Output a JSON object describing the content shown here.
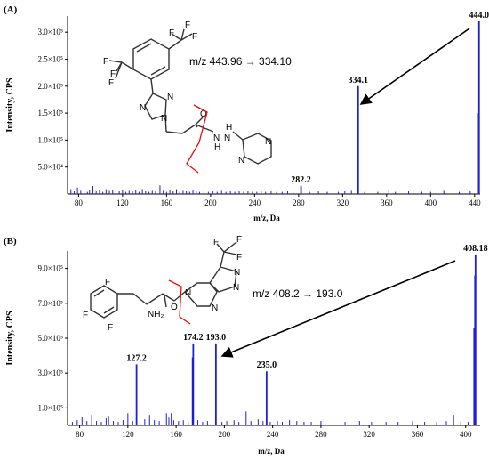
{
  "colors": {
    "spectrum": "#1f1fd6",
    "axis": "#000000",
    "cleavage": "#e01010",
    "arrow": "#000000",
    "bond": "#333333"
  },
  "chart_data": [
    {
      "type": "bar",
      "panel_label": "(A)",
      "xlabel": "m/z, Da",
      "ylabel": "Intensity, CPS",
      "xlim": [
        70,
        445
      ],
      "ylim": [
        0,
        330000
      ],
      "x_ticks": [
        80,
        120,
        160,
        200,
        240,
        280,
        320,
        360,
        400,
        440
      ],
      "y_ticks": [
        {
          "value": 50000,
          "label": "5.0×10⁴"
        },
        {
          "value": 100000,
          "label": "1.0×10⁵"
        },
        {
          "value": 150000,
          "label": "1.5×10⁵"
        },
        {
          "value": 200000,
          "label": "2.0×10⁵"
        },
        {
          "value": 250000,
          "label": "2.5×10⁵"
        },
        {
          "value": 300000,
          "label": "3.0×10⁵"
        }
      ],
      "peaks": [
        {
          "mz": 282.2,
          "intensity": 15000,
          "label": "282.2"
        },
        {
          "mz": 334.1,
          "intensity": 200000,
          "label": "334.1"
        },
        {
          "mz": 444.0,
          "intensity": 320000,
          "label": "444.0"
        }
      ],
      "extra_peaks": [
        {
          "mz": 333.5,
          "intensity": 170000
        },
        {
          "mz": 443.5,
          "intensity": 150000
        }
      ],
      "noise": [
        [
          73,
          9000
        ],
        [
          76,
          5000
        ],
        [
          79,
          12000
        ],
        [
          82,
          6000
        ],
        [
          85,
          7000
        ],
        [
          88,
          4000
        ],
        [
          90,
          8000
        ],
        [
          93,
          15000
        ],
        [
          96,
          5000
        ],
        [
          99,
          7000
        ],
        [
          102,
          4000
        ],
        [
          105,
          9000
        ],
        [
          108,
          6000
        ],
        [
          111,
          8000
        ],
        [
          114,
          13000
        ],
        [
          117,
          5000
        ],
        [
          120,
          7000
        ],
        [
          123,
          4000
        ],
        [
          126,
          6000
        ],
        [
          129,
          5000
        ],
        [
          132,
          7000
        ],
        [
          135,
          4000
        ],
        [
          138,
          9000
        ],
        [
          141,
          5000
        ],
        [
          144,
          4000
        ],
        [
          147,
          6000
        ],
        [
          150,
          5000
        ],
        [
          154,
          16000
        ],
        [
          157,
          6000
        ],
        [
          160,
          4000
        ],
        [
          163,
          7000
        ],
        [
          166,
          5000
        ],
        [
          169,
          9000
        ],
        [
          172,
          4000
        ],
        [
          175,
          6000
        ],
        [
          178,
          5000
        ],
        [
          181,
          4000
        ],
        [
          184,
          7000
        ],
        [
          187,
          5000
        ],
        [
          190,
          4000
        ],
        [
          194,
          6000
        ],
        [
          198,
          4000
        ],
        [
          202,
          5000
        ],
        [
          206,
          4000
        ],
        [
          210,
          6000
        ],
        [
          214,
          4000
        ],
        [
          218,
          5000
        ],
        [
          222,
          4000
        ],
        [
          226,
          5000
        ],
        [
          230,
          4000
        ],
        [
          234,
          5000
        ],
        [
          238,
          4000
        ],
        [
          242,
          4000
        ],
        [
          246,
          5000
        ],
        [
          250,
          4000
        ],
        [
          255,
          5000
        ],
        [
          260,
          4000
        ],
        [
          265,
          4000
        ],
        [
          270,
          5000
        ],
        [
          275,
          4000
        ],
        [
          290,
          4000
        ],
        [
          298,
          5000
        ],
        [
          306,
          4000
        ],
        [
          316,
          4000
        ],
        [
          322,
          5000
        ],
        [
          328,
          6000
        ],
        [
          340,
          4000
        ],
        [
          352,
          4000
        ],
        [
          362,
          6000
        ],
        [
          368,
          4000
        ],
        [
          380,
          5000
        ],
        [
          392,
          4000
        ],
        [
          400,
          4000
        ],
        [
          412,
          6000
        ],
        [
          426,
          4000
        ],
        [
          436,
          5000
        ]
      ],
      "annotation": "m/z 443.96 → 334.10"
    },
    {
      "type": "bar",
      "panel_label": "(B)",
      "xlabel": "m/z, Da",
      "ylabel": "Intensity, CPS",
      "xlim": [
        70,
        412
      ],
      "ylim": [
        0,
        1000000
      ],
      "x_ticks": [
        80,
        120,
        160,
        200,
        240,
        280,
        320,
        360,
        400
      ],
      "y_ticks": [
        {
          "value": 100000,
          "label": "1.0×10⁵"
        },
        {
          "value": 300000,
          "label": "3.0×10⁵"
        },
        {
          "value": 500000,
          "label": "5.0×10⁵"
        },
        {
          "value": 700000,
          "label": "7.0×10⁵"
        },
        {
          "value": 900000,
          "label": "9.0×10⁵"
        }
      ],
      "peaks": [
        {
          "mz": 127.2,
          "intensity": 350000,
          "label": "127.2"
        },
        {
          "mz": 174.2,
          "intensity": 470000,
          "label": "174.2"
        },
        {
          "mz": 193.0,
          "intensity": 470000,
          "label": "193.0"
        },
        {
          "mz": 235.0,
          "intensity": 310000,
          "label": "235.0"
        },
        {
          "mz": 408.18,
          "intensity": 980000,
          "label": "408.18"
        }
      ],
      "extra_peaks": [
        {
          "mz": 173.5,
          "intensity": 390000
        },
        {
          "mz": 407.6,
          "intensity": 860000
        },
        {
          "mz": 406.9,
          "intensity": 560000
        }
      ],
      "noise": [
        [
          74,
          20000
        ],
        [
          78,
          30000
        ],
        [
          82,
          50000
        ],
        [
          86,
          25000
        ],
        [
          90,
          60000
        ],
        [
          94,
          25000
        ],
        [
          98,
          20000
        ],
        [
          102,
          40000
        ],
        [
          104,
          55000
        ],
        [
          108,
          25000
        ],
        [
          112,
          20000
        ],
        [
          116,
          30000
        ],
        [
          120,
          70000
        ],
        [
          124,
          25000
        ],
        [
          130,
          20000
        ],
        [
          134,
          35000
        ],
        [
          138,
          60000
        ],
        [
          142,
          30000
        ],
        [
          146,
          25000
        ],
        [
          150,
          90000
        ],
        [
          152,
          70000
        ],
        [
          154,
          45000
        ],
        [
          156,
          70000
        ],
        [
          158,
          30000
        ],
        [
          162,
          25000
        ],
        [
          166,
          30000
        ],
        [
          170,
          20000
        ],
        [
          178,
          30000
        ],
        [
          182,
          20000
        ],
        [
          186,
          25000
        ],
        [
          198,
          20000
        ],
        [
          202,
          25000
        ],
        [
          208,
          30000
        ],
        [
          212,
          20000
        ],
        [
          218,
          80000
        ],
        [
          222,
          25000
        ],
        [
          228,
          35000
        ],
        [
          232,
          25000
        ],
        [
          238,
          20000
        ],
        [
          244,
          25000
        ],
        [
          248,
          20000
        ],
        [
          254,
          30000
        ],
        [
          260,
          25000
        ],
        [
          266,
          20000
        ],
        [
          272,
          20000
        ],
        [
          280,
          25000
        ],
        [
          290,
          20000
        ],
        [
          300,
          20000
        ],
        [
          312,
          25000
        ],
        [
          322,
          20000
        ],
        [
          334,
          20000
        ],
        [
          344,
          20000
        ],
        [
          356,
          25000
        ],
        [
          366,
          20000
        ],
        [
          376,
          20000
        ],
        [
          384,
          25000
        ],
        [
          390,
          60000
        ],
        [
          396,
          25000
        ],
        [
          402,
          20000
        ]
      ],
      "annotation": "m/z 408.2 → 193.0"
    }
  ],
  "structure_labels": {
    "a_cf3": [
      "F",
      "F",
      "F",
      "F",
      "F",
      "F"
    ],
    "a_n": [
      "N",
      "N",
      "N",
      "N",
      "N",
      "H",
      "H",
      "N",
      "N"
    ],
    "a_o": "O",
    "b_f": [
      "F",
      "F",
      "F",
      "F",
      "F",
      "F"
    ],
    "b_n": [
      "N",
      "N",
      "N",
      "N"
    ],
    "b_nh2": "NH₂",
    "b_o": "O"
  }
}
